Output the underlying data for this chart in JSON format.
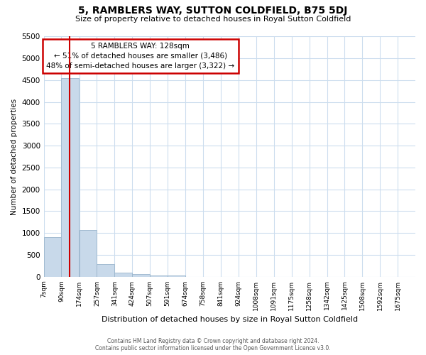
{
  "title": "5, RAMBLERS WAY, SUTTON COLDFIELD, B75 5DJ",
  "subtitle": "Size of property relative to detached houses in Royal Sutton Coldfield",
  "xlabel": "Distribution of detached houses by size in Royal Sutton Coldfield",
  "ylabel": "Number of detached properties",
  "annotation_title": "5 RAMBLERS WAY: 128sqm",
  "annotation_line1": "← 51% of detached houses are smaller (3,486)",
  "annotation_line2": "48% of semi-detached houses are larger (3,322) →",
  "footer_line1": "Contains HM Land Registry data © Crown copyright and database right 2024.",
  "footer_line2": "Contains public sector information licensed under the Open Government Licence v3.0.",
  "property_size": 128,
  "ylim": [
    0,
    5500
  ],
  "bar_color": "#c8d9ea",
  "bar_edge_color": "#9ab5cc",
  "vline_color": "#cc0000",
  "annotation_box_color": "#cc0000",
  "grid_color": "#ccddee",
  "categories": [
    "7sqm",
    "90sqm",
    "174sqm",
    "257sqm",
    "341sqm",
    "424sqm",
    "507sqm",
    "591sqm",
    "674sqm",
    "758sqm",
    "841sqm",
    "924sqm",
    "1008sqm",
    "1091sqm",
    "1175sqm",
    "1258sqm",
    "1342sqm",
    "1425sqm",
    "1508sqm",
    "1592sqm",
    "1675sqm"
  ],
  "bin_edges": [
    7,
    90,
    174,
    257,
    341,
    424,
    507,
    591,
    674,
    758,
    841,
    924,
    1008,
    1091,
    1175,
    1258,
    1342,
    1425,
    1508,
    1592,
    1675
  ],
  "bin_width": 83,
  "values": [
    900,
    4550,
    1070,
    280,
    90,
    55,
    30,
    25,
    0,
    0,
    0,
    0,
    0,
    0,
    0,
    0,
    0,
    0,
    0,
    0,
    0
  ],
  "yticks": [
    0,
    500,
    1000,
    1500,
    2000,
    2500,
    3000,
    3500,
    4000,
    4500,
    5000,
    5500
  ]
}
